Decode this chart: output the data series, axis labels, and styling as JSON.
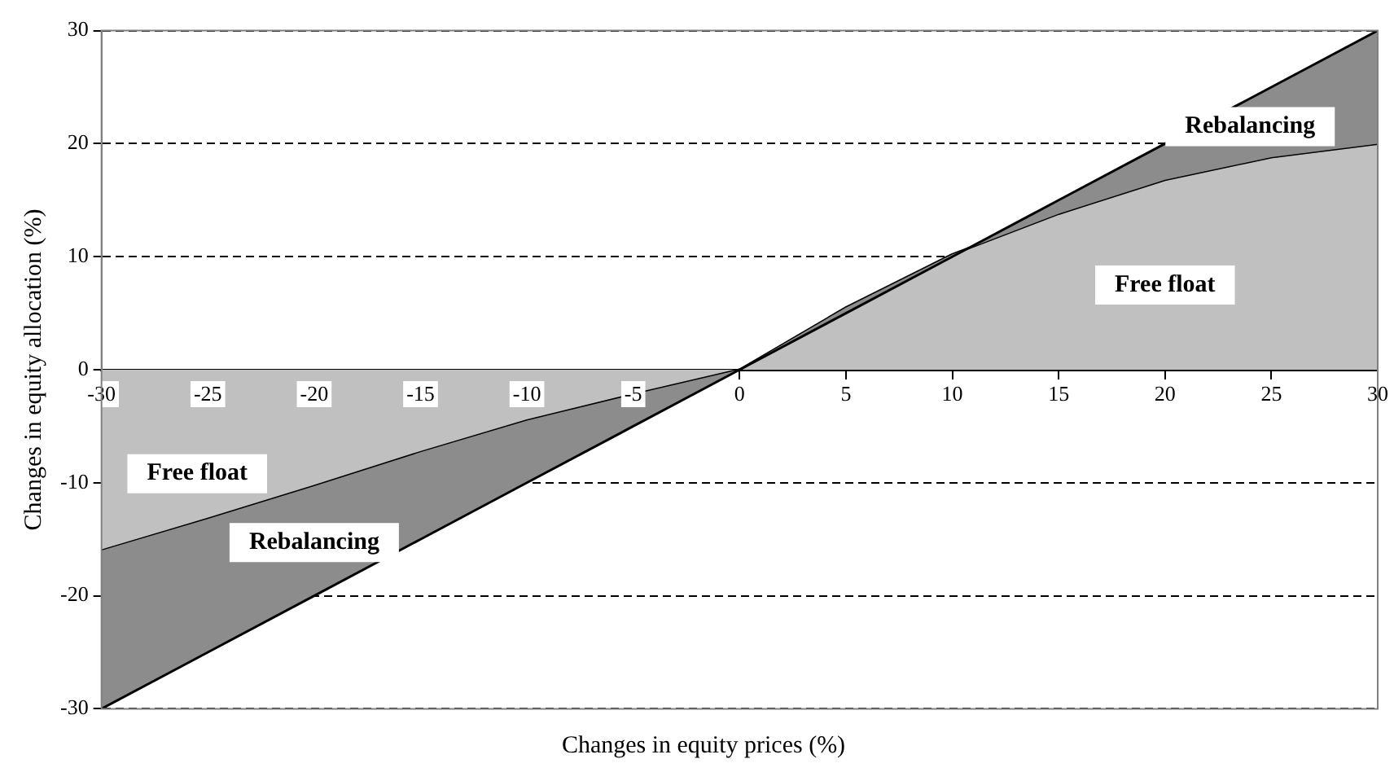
{
  "chart_data": {
    "type": "area",
    "xlabel": "Changes in equity prices (%)",
    "ylabel": "Changes in equity allocation (%)",
    "x": [
      -30,
      -25,
      -20,
      -15,
      -10,
      -5,
      0,
      5,
      10,
      15,
      20,
      25,
      30
    ],
    "series": [
      {
        "name": "Free float",
        "color": "#c0c0c0",
        "values": [
          -16,
          -13.2,
          -10.3,
          -7.3,
          -4.5,
          -2.2,
          0,
          5.5,
          10.2,
          13.8,
          16.8,
          18.8,
          20
        ]
      },
      {
        "name": "Rebalancing",
        "color": "#8c8c8c",
        "values": [
          -30,
          -25,
          -20,
          -15,
          -10,
          -5,
          0,
          5,
          10,
          15,
          20,
          25,
          30
        ]
      }
    ],
    "xlim": [
      -30,
      30
    ],
    "xticks": [
      -30,
      -25,
      -20,
      -15,
      -10,
      -5,
      0,
      5,
      10,
      15,
      20,
      25,
      30
    ],
    "ylim": [
      -30,
      30
    ],
    "yticks": [
      -30,
      -20,
      -10,
      0,
      10,
      20,
      30
    ],
    "grid": "y",
    "line_style": "solid",
    "marker": "none",
    "legend": false
  }
}
